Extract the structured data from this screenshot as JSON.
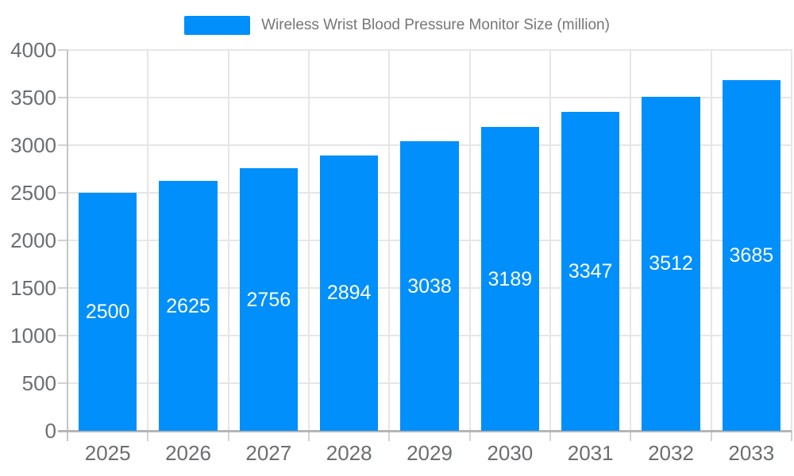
{
  "legend": {
    "label": "Wireless Wrist Blood Pressure Monitor Size (million)"
  },
  "chart_data": {
    "type": "bar",
    "title": "Wireless Wrist Blood Pressure Monitor Size (million)",
    "xlabel": "",
    "ylabel": "",
    "categories": [
      "2025",
      "2026",
      "2027",
      "2028",
      "2029",
      "2030",
      "2031",
      "2032",
      "2033"
    ],
    "series": [
      {
        "name": "Wireless Wrist Blood Pressure Monitor Size (million)",
        "values": [
          2500,
          2625,
          2756,
          2894,
          3038,
          3189,
          3347,
          3512,
          3685
        ]
      }
    ],
    "data_labels_shown": true,
    "ylim": [
      0,
      4000
    ],
    "yticks": [
      0,
      500,
      1000,
      1500,
      2000,
      2500,
      3000,
      3500,
      4000
    ],
    "grid": true,
    "legend_position": "top"
  },
  "style": {
    "bar_color": "#008FFB",
    "value_label_color": "#ffffff",
    "axis_label_color": "#6b6e71",
    "legend_text_color": "#757679",
    "grid_color": "#e6e6e6",
    "x_axis_line_color": "#b5b5b5",
    "y_axis_line_color": "#c5c5c5",
    "tick_color": "#d2d2d2",
    "background": "#ffffff"
  }
}
